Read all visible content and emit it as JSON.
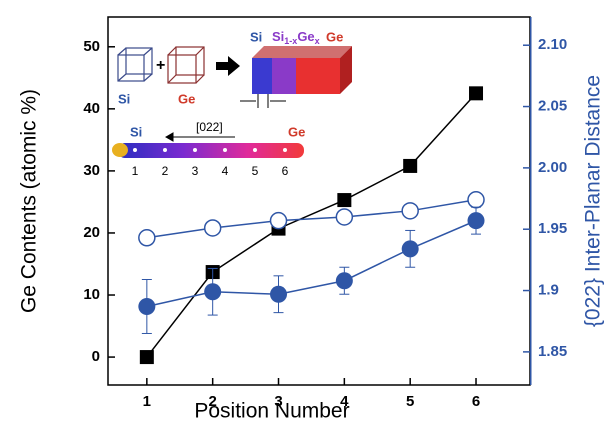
{
  "chart_data": {
    "type": "line",
    "xlabel": "Position Number",
    "ylabel": "Ge Contents (atomic %)",
    "y2label": "{022} Inter-Planar Distance",
    "x": [
      1,
      2,
      3,
      4,
      5,
      6
    ],
    "xlim": [
      0.41,
      6.82
    ],
    "xticks": [
      1,
      2,
      3,
      4,
      5,
      6
    ],
    "ylim": [
      -4.5,
      54.8
    ],
    "yticks": [
      0,
      10,
      20,
      30,
      40,
      50
    ],
    "y2lim": [
      1.823,
      2.123
    ],
    "y2ticks": [
      1.85,
      1.9,
      1.95,
      {
        "value": 2.0,
        "label": "2.00"
      },
      2.05,
      {
        "value": 2.1,
        "label": "2.10"
      }
    ],
    "y2color": "#2f56a6",
    "series": [
      {
        "marker": "square",
        "color": "#000000",
        "values": [
          0,
          13.7,
          20.7,
          25.3,
          30.8,
          42.5
        ]
      },
      {
        "marker": "open-circle",
        "color": "#2f56a6",
        "axis": "y2",
        "values": [
          1.943,
          1.951,
          1.957,
          1.96,
          1.965,
          1.974
        ]
      },
      {
        "marker": "filled-circle",
        "color": "#2f56a6",
        "axis": "y2",
        "values": [
          1.887,
          1.899,
          1.897,
          1.908,
          1.934,
          1.957
        ],
        "errors": [
          0.022,
          0.019,
          0.015,
          0.011,
          0.015,
          0.011
        ]
      }
    ],
    "inset": {
      "cube_labels": [
        "Si",
        "Ge"
      ],
      "block_labels": [
        "Si",
        "Ge"
      ],
      "alloy_label": [
        "Si",
        "1-x",
        "Ge",
        "x"
      ],
      "direction": "[022]",
      "bar_ends": [
        "Si",
        "Ge"
      ],
      "bar_points": [
        "1",
        "2",
        "3",
        "4",
        "5",
        "6"
      ]
    }
  }
}
